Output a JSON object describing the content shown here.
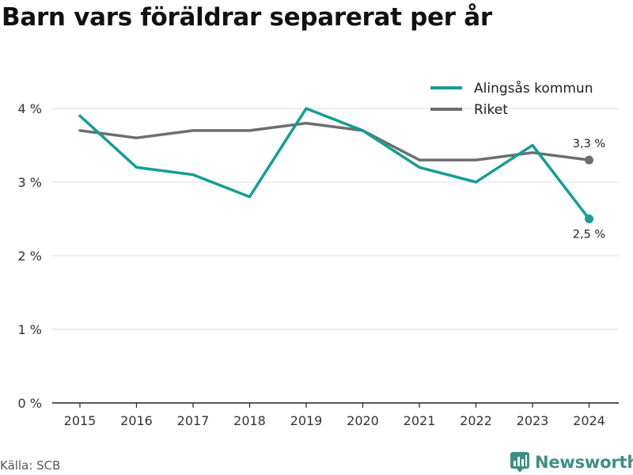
{
  "title": "Barn vars föräldrar separerat per år",
  "source": "Källa: SCB",
  "brand": {
    "name": "Newsworthy",
    "icon": "bar-chart-logo-icon",
    "color": "#3e8e87"
  },
  "chart_data": {
    "type": "line",
    "title": "Barn vars föräldrar separerat per år",
    "x": [
      "2015",
      "2016",
      "2017",
      "2018",
      "2019",
      "2020",
      "2021",
      "2022",
      "2023",
      "2024"
    ],
    "series": [
      {
        "name": "Alingsås kommun",
        "color": "#139e96",
        "values": [
          3.9,
          3.2,
          3.1,
          2.8,
          4.0,
          3.7,
          3.2,
          3.0,
          3.5,
          2.5
        ],
        "end_label": "2,5 %"
      },
      {
        "name": "Riket",
        "color": "#6d6d72",
        "values": [
          3.7,
          3.6,
          3.7,
          3.7,
          3.8,
          3.7,
          3.3,
          3.3,
          3.4,
          3.3
        ],
        "end_label": "3,3 %"
      }
    ],
    "ylim": [
      0,
      4
    ],
    "y_ticks": [
      0,
      1,
      2,
      3,
      4
    ],
    "y_tick_labels": [
      "0 %",
      "1 %",
      "2 %",
      "3 %",
      "4 %"
    ],
    "grid": true,
    "legend": "top-right"
  }
}
